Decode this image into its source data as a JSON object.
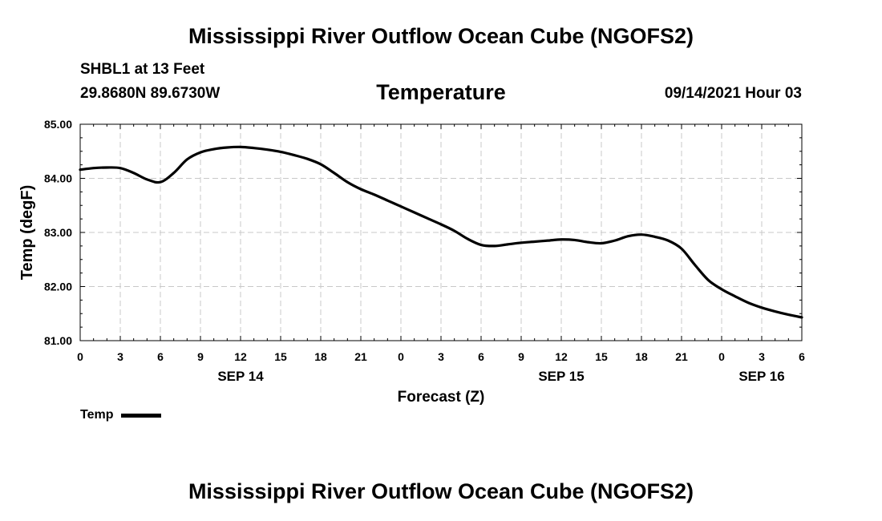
{
  "header": {
    "title": "Mississippi River Outflow Ocean Cube (NGOFS2)",
    "station": "SHBL1 at 13 Feet",
    "coords": "29.8680N  89.6730W",
    "plot_title": "Temperature",
    "datetime": "09/14/2021 Hour 03"
  },
  "footer": {
    "title": "Mississippi River Outflow Ocean Cube (NGOFS2)"
  },
  "legend": {
    "label": "Temp"
  },
  "chart_data": {
    "type": "line",
    "title": "Temperature",
    "xlabel": "Forecast (Z)",
    "ylabel": "Temp (degF)",
    "xlim": [
      0,
      54
    ],
    "ylim": [
      81.0,
      85.0
    ],
    "grid": true,
    "x_ticks": [
      0,
      3,
      6,
      9,
      12,
      15,
      18,
      21,
      24,
      27,
      30,
      33,
      36,
      39,
      42,
      45,
      48,
      51,
      54
    ],
    "x_tick_labels": [
      "0",
      "3",
      "6",
      "9",
      "12",
      "15",
      "18",
      "21",
      "0",
      "3",
      "6",
      "9",
      "12",
      "15",
      "18",
      "21",
      "0",
      "3",
      "6"
    ],
    "day_labels": [
      {
        "x": 12,
        "label": "SEP 14"
      },
      {
        "x": 36,
        "label": "SEP 15"
      },
      {
        "x": 51,
        "label": "SEP 16"
      }
    ],
    "y_ticks": [
      81.0,
      82.0,
      83.0,
      84.0,
      85.0
    ],
    "y_tick_labels": [
      "81.00",
      "82.00",
      "83.00",
      "84.00",
      "85.00"
    ],
    "series": [
      {
        "name": "Temp",
        "color": "#000000",
        "x": [
          0,
          1,
          2,
          3,
          4,
          5,
          6,
          7,
          8,
          9,
          10,
          11,
          12,
          13,
          14,
          15,
          16,
          17,
          18,
          19,
          20,
          21,
          22,
          23,
          24,
          25,
          26,
          27,
          28,
          29,
          30,
          31,
          32,
          33,
          34,
          35,
          36,
          37,
          38,
          39,
          40,
          41,
          42,
          43,
          44,
          45,
          46,
          47,
          48,
          49,
          50,
          51,
          52,
          53,
          54
        ],
        "values": [
          84.16,
          84.19,
          84.2,
          84.19,
          84.1,
          83.98,
          83.93,
          84.1,
          84.35,
          84.48,
          84.54,
          84.57,
          84.58,
          84.56,
          84.53,
          84.49,
          84.43,
          84.36,
          84.26,
          84.1,
          83.93,
          83.8,
          83.7,
          83.59,
          83.48,
          83.37,
          83.26,
          83.15,
          83.03,
          82.88,
          82.77,
          82.75,
          82.78,
          82.81,
          82.83,
          82.85,
          82.87,
          82.86,
          82.82,
          82.8,
          82.85,
          82.93,
          82.96,
          82.92,
          82.85,
          82.7,
          82.4,
          82.12,
          81.95,
          81.82,
          81.7,
          81.61,
          81.54,
          81.48,
          81.43
        ]
      }
    ]
  }
}
